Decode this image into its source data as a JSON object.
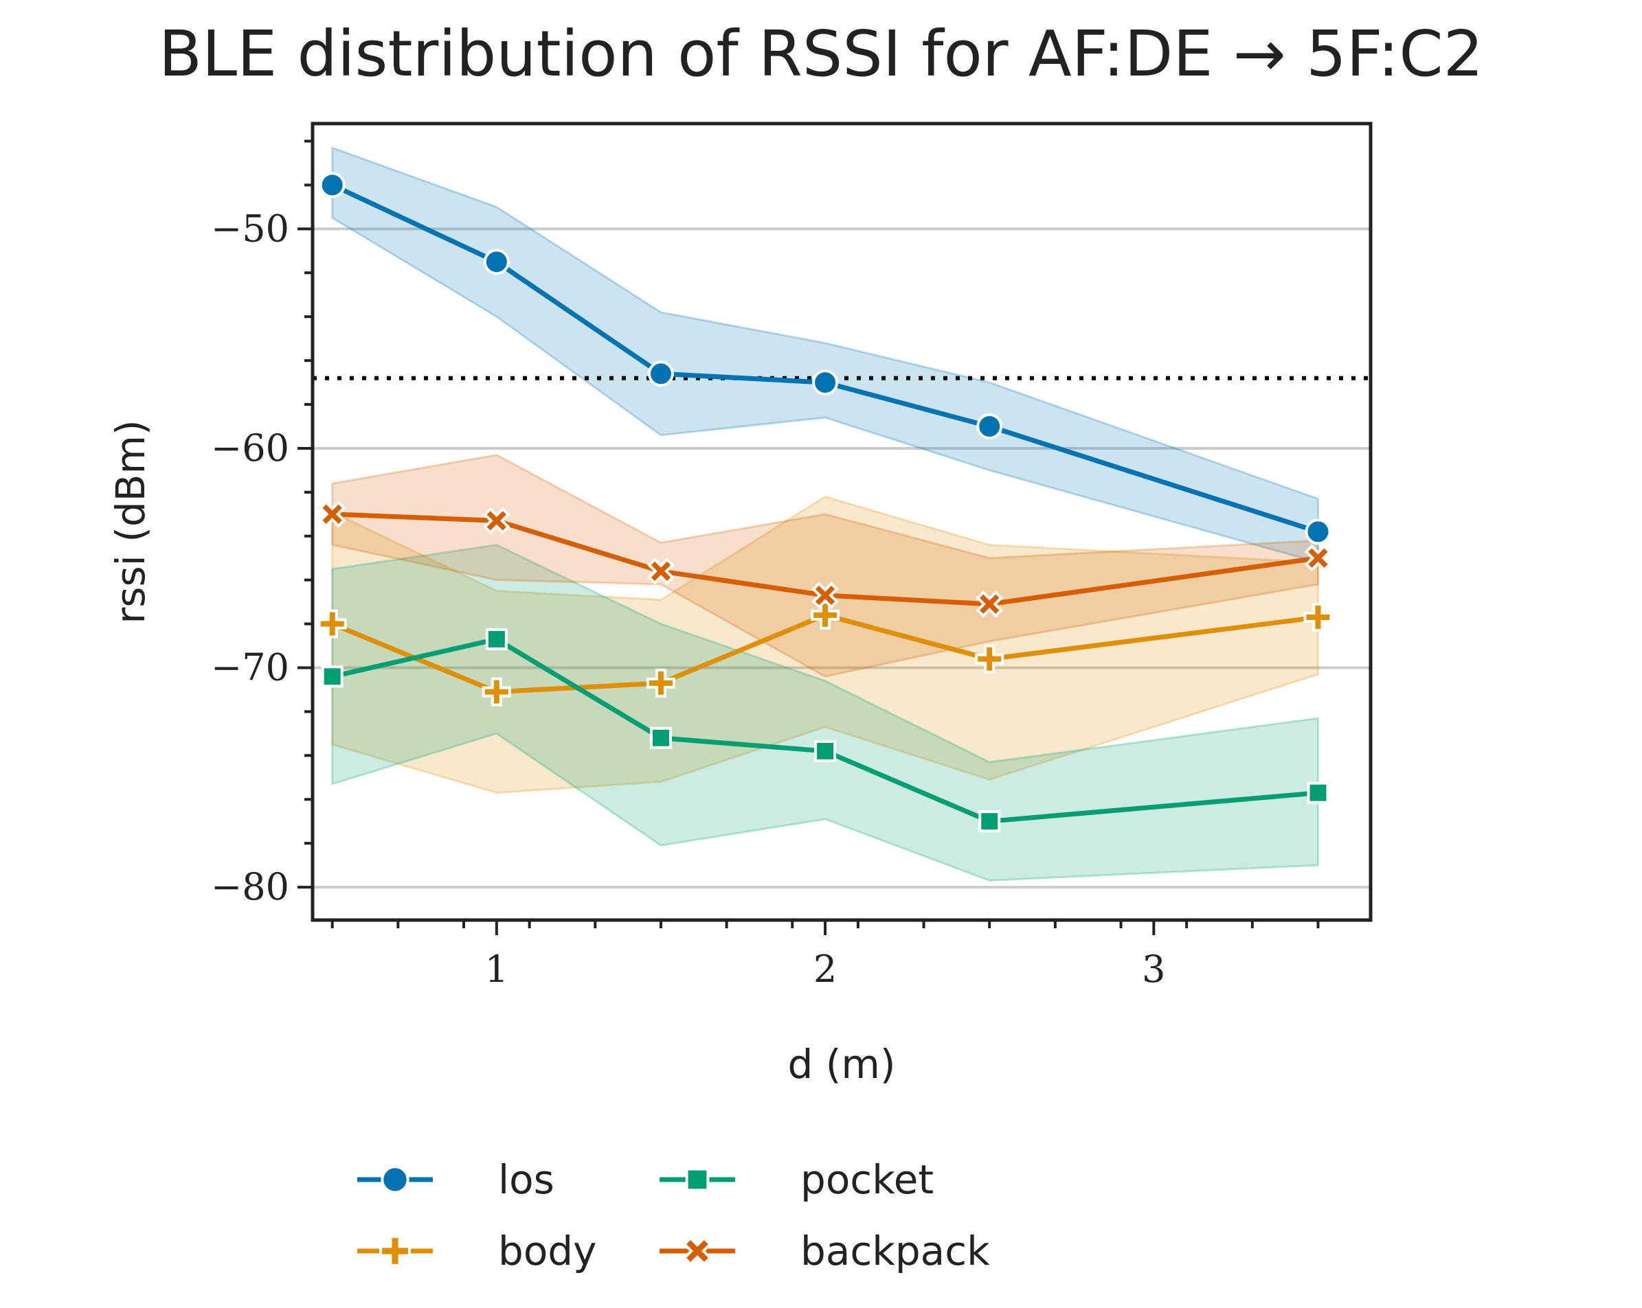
{
  "chart_data": {
    "type": "line",
    "title": "BLE distribution of RSSI for AF:DE → 5F:C2",
    "xlabel": "d (m)",
    "ylabel": "rssi (dBm)",
    "xlim": [
      0.44,
      3.66
    ],
    "ylim": [
      -81.5,
      -45.2
    ],
    "x_ticks": [
      1,
      2,
      3
    ],
    "x_tick_labels": [
      "1",
      "2",
      "3"
    ],
    "y_ticks": [
      -80,
      -70,
      -60,
      -50
    ],
    "y_tick_labels": [
      "−80",
      "−70",
      "−60",
      "−50"
    ],
    "grid": "horizontal at major y ticks",
    "reference_line": {
      "y": -56.8,
      "style": "dotted",
      "color": "#000000"
    },
    "legend_position": "below plot, 2 columns",
    "x": [
      0.5,
      1.0,
      1.5,
      2.0,
      2.5,
      3.5
    ],
    "series": [
      {
        "name": "los",
        "color": "#0173b2",
        "marker": "circle",
        "values": [
          -48.0,
          -51.5,
          -56.6,
          -57.0,
          -59.0,
          -63.8
        ],
        "lower": [
          -49.5,
          -54.0,
          -59.4,
          -58.6,
          -61.0,
          -65.2
        ],
        "upper": [
          -46.3,
          -49.0,
          -53.8,
          -55.2,
          -57.0,
          -62.3
        ]
      },
      {
        "name": "body",
        "color": "#de8f05",
        "marker": "plus",
        "values": [
          -68.0,
          -71.1,
          -70.7,
          -67.6,
          -69.6,
          -67.7
        ],
        "lower": [
          -73.5,
          -75.7,
          -75.2,
          -72.7,
          -75.1,
          -70.3
        ],
        "upper": [
          -62.9,
          -66.5,
          -66.9,
          -62.2,
          -64.4,
          -65.2
        ]
      },
      {
        "name": "pocket",
        "color": "#029e73",
        "marker": "square",
        "values": [
          -70.4,
          -68.7,
          -73.2,
          -73.8,
          -77.0,
          -75.7
        ],
        "lower": [
          -75.3,
          -73.0,
          -78.1,
          -76.9,
          -79.7,
          -79.0
        ],
        "upper": [
          -65.5,
          -64.4,
          -68.0,
          -70.6,
          -74.3,
          -72.3
        ]
      },
      {
        "name": "backpack",
        "color": "#d55e00",
        "marker": "x",
        "values": [
          -63.0,
          -63.3,
          -65.6,
          -66.7,
          -67.1,
          -65.0
        ],
        "lower": [
          -64.4,
          -66.0,
          -66.2,
          -70.4,
          -68.8,
          -66.2
        ],
        "upper": [
          -61.6,
          -60.3,
          -64.3,
          -63.0,
          -65.0,
          -64.2
        ]
      }
    ]
  },
  "colors": {
    "frame": "#222222",
    "grid": "#cccccc",
    "reference": "#000000"
  }
}
